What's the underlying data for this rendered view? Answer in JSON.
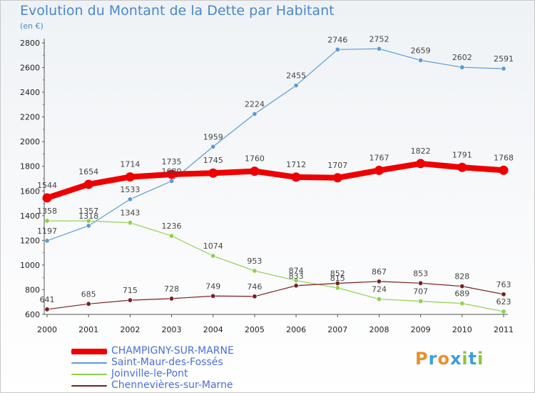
{
  "title": "Evolution du Montant de la Dette par Habitant",
  "unit": "(en €)",
  "logo": [
    {
      "ch": "P",
      "color": "#e8902a"
    },
    {
      "ch": "r",
      "color": "#3aa0d8"
    },
    {
      "ch": "o",
      "color": "#e8902a"
    },
    {
      "ch": "x",
      "color": "#3aa0d8"
    },
    {
      "ch": "i",
      "color": "#8cc43c"
    },
    {
      "ch": "t",
      "color": "#3aa0d8"
    },
    {
      "ch": "i",
      "color": "#8cc43c"
    }
  ],
  "chart_data": {
    "type": "line",
    "x": [
      "2000",
      "2001",
      "2002",
      "2003",
      "2004",
      "2005",
      "2006",
      "2007",
      "2008",
      "2009",
      "2010",
      "2011"
    ],
    "ylim": [
      600,
      2800
    ],
    "yticks": [
      600,
      800,
      1000,
      1200,
      1400,
      1600,
      1800,
      2000,
      2200,
      2400,
      2600,
      2800
    ],
    "grid": false,
    "legend_position": "bottom-left",
    "series": [
      {
        "name": "CHAMPIGNY-SUR-MARNE",
        "color": "#ee0000",
        "highlight": true,
        "values": [
          1544,
          1654,
          1714,
          1735,
          1745,
          1760,
          1712,
          1707,
          1767,
          1822,
          1791,
          1768
        ]
      },
      {
        "name": "Saint-Maur-des-Fossés",
        "color": "#5b9bd5",
        "values": [
          1197,
          1318,
          1533,
          1680,
          1959,
          2224,
          2455,
          2746,
          2752,
          2659,
          2602,
          2591
        ]
      },
      {
        "name": "Joinville-le-Pont",
        "color": "#8fd14f",
        "values": [
          1358,
          1357,
          1343,
          1236,
          1074,
          953,
          874,
          815,
          724,
          707,
          689,
          623
        ]
      },
      {
        "name": "Chennevières-sur-Marne",
        "color": "#7a2020",
        "values": [
          641,
          685,
          715,
          728,
          749,
          746,
          833,
          852,
          867,
          853,
          828,
          763
        ]
      }
    ]
  }
}
